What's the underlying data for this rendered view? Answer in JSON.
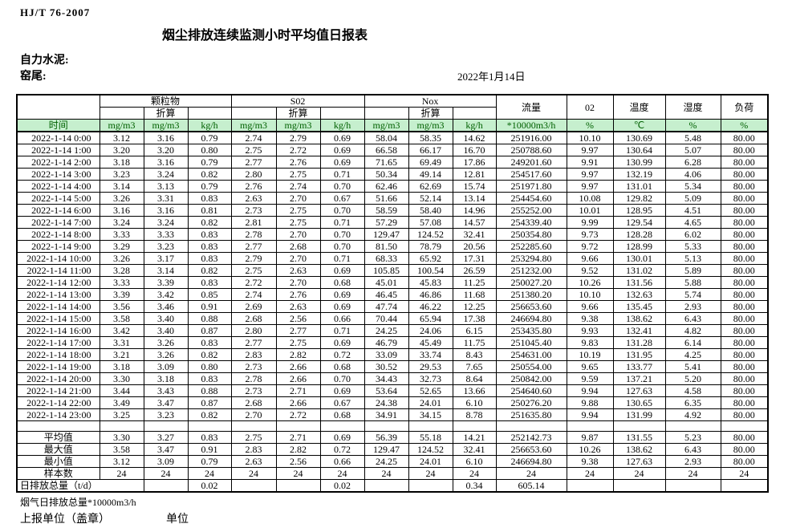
{
  "page": {
    "standard_code": "HJ/T  76-2007",
    "title": "烟尘排放连续监测小时平均值日报表",
    "company": "自力水泥:",
    "site": "窑尾:",
    "date": "2022年1月14日"
  },
  "colors": {
    "unit_row_background": "#c6efce",
    "unit_row_text": "#006100",
    "border": "#000000"
  },
  "table": {
    "time_header": "时间",
    "groups": [
      {
        "label": "颗粒物",
        "sub": "折算"
      },
      {
        "label": "S02",
        "sub": "折算"
      },
      {
        "label": "Nox",
        "sub": "折算"
      }
    ],
    "single_headers": [
      "流量",
      "02",
      "温度",
      "湿度",
      "负荷"
    ],
    "unit_row": [
      "mg/m3",
      "mg/m3",
      "kg/h",
      "mg/m3",
      "mg/m3",
      "kg/h",
      "mg/m3",
      "mg/m3",
      "kg/h",
      "*10000m3/h",
      "%",
      "℃",
      "%",
      "%"
    ],
    "rows": [
      {
        "time": "2022-1-14 0:00",
        "values": [
          "3.12",
          "3.16",
          "0.79",
          "2.74",
          "2.79",
          "0.69",
          "58.04",
          "58.35",
          "14.62",
          "251916.00",
          "10.10",
          "130.69",
          "5.48",
          "80.00"
        ]
      },
      {
        "time": "2022-1-14 1:00",
        "values": [
          "3.20",
          "3.20",
          "0.80",
          "2.75",
          "2.72",
          "0.69",
          "66.58",
          "66.17",
          "16.70",
          "250788.60",
          "9.97",
          "130.64",
          "5.07",
          "80.00"
        ]
      },
      {
        "time": "2022-1-14 2:00",
        "values": [
          "3.18",
          "3.16",
          "0.79",
          "2.77",
          "2.76",
          "0.69",
          "71.65",
          "69.49",
          "17.86",
          "249201.60",
          "9.91",
          "130.99",
          "6.28",
          "80.00"
        ]
      },
      {
        "time": "2022-1-14 3:00",
        "values": [
          "3.23",
          "3.24",
          "0.82",
          "2.80",
          "2.75",
          "0.71",
          "50.34",
          "49.14",
          "12.81",
          "254517.60",
          "9.97",
          "132.19",
          "4.06",
          "80.00"
        ]
      },
      {
        "time": "2022-1-14 4:00",
        "values": [
          "3.14",
          "3.13",
          "0.79",
          "2.76",
          "2.74",
          "0.70",
          "62.46",
          "62.69",
          "15.74",
          "251971.80",
          "9.97",
          "131.01",
          "5.34",
          "80.00"
        ]
      },
      {
        "time": "2022-1-14 5:00",
        "values": [
          "3.26",
          "3.31",
          "0.83",
          "2.63",
          "2.70",
          "0.67",
          "51.66",
          "52.14",
          "13.14",
          "254454.60",
          "10.08",
          "129.82",
          "5.09",
          "80.00"
        ]
      },
      {
        "time": "2022-1-14 6:00",
        "values": [
          "3.16",
          "3.16",
          "0.81",
          "2.73",
          "2.75",
          "0.70",
          "58.59",
          "58.40",
          "14.96",
          "255252.00",
          "10.01",
          "128.95",
          "4.51",
          "80.00"
        ]
      },
      {
        "time": "2022-1-14 7:00",
        "values": [
          "3.24",
          "3.24",
          "0.82",
          "2.81",
          "2.75",
          "0.71",
          "57.29",
          "57.08",
          "14.57",
          "254339.40",
          "9.99",
          "129.54",
          "4.65",
          "80.00"
        ]
      },
      {
        "time": "2022-1-14 8:00",
        "values": [
          "3.33",
          "3.33",
          "0.83",
          "2.78",
          "2.70",
          "0.70",
          "129.47",
          "124.52",
          "32.41",
          "250354.80",
          "9.73",
          "128.28",
          "6.02",
          "80.00"
        ]
      },
      {
        "time": "2022-1-14 9:00",
        "values": [
          "3.29",
          "3.23",
          "0.83",
          "2.77",
          "2.68",
          "0.70",
          "81.50",
          "78.79",
          "20.56",
          "252285.60",
          "9.72",
          "128.99",
          "5.33",
          "80.00"
        ]
      },
      {
        "time": "2022-1-14 10:00",
        "values": [
          "3.26",
          "3.17",
          "0.83",
          "2.79",
          "2.70",
          "0.71",
          "68.33",
          "65.92",
          "17.31",
          "253294.80",
          "9.66",
          "130.01",
          "5.13",
          "80.00"
        ]
      },
      {
        "time": "2022-1-14 11:00",
        "values": [
          "3.28",
          "3.14",
          "0.82",
          "2.75",
          "2.63",
          "0.69",
          "105.85",
          "100.54",
          "26.59",
          "251232.00",
          "9.52",
          "131.02",
          "5.89",
          "80.00"
        ]
      },
      {
        "time": "2022-1-14 12:00",
        "values": [
          "3.33",
          "3.39",
          "0.83",
          "2.72",
          "2.70",
          "0.68",
          "45.01",
          "45.83",
          "11.25",
          "250027.20",
          "10.26",
          "131.56",
          "5.88",
          "80.00"
        ]
      },
      {
        "time": "2022-1-14 13:00",
        "values": [
          "3.39",
          "3.42",
          "0.85",
          "2.74",
          "2.76",
          "0.69",
          "46.45",
          "46.86",
          "11.68",
          "251380.20",
          "10.10",
          "132.63",
          "5.74",
          "80.00"
        ]
      },
      {
        "time": "2022-1-14 14:00",
        "values": [
          "3.56",
          "3.46",
          "0.91",
          "2.69",
          "2.63",
          "0.69",
          "47.74",
          "46.22",
          "12.25",
          "256653.60",
          "9.66",
          "135.45",
          "2.93",
          "80.00"
        ]
      },
      {
        "time": "2022-1-14 15:00",
        "values": [
          "3.58",
          "3.40",
          "0.88",
          "2.68",
          "2.56",
          "0.66",
          "70.44",
          "65.94",
          "17.38",
          "246694.80",
          "9.38",
          "138.62",
          "6.43",
          "80.00"
        ]
      },
      {
        "time": "2022-1-14 16:00",
        "values": [
          "3.42",
          "3.40",
          "0.87",
          "2.80",
          "2.77",
          "0.71",
          "24.25",
          "24.06",
          "6.15",
          "253435.80",
          "9.93",
          "132.41",
          "4.82",
          "80.00"
        ]
      },
      {
        "time": "2022-1-14 17:00",
        "values": [
          "3.31",
          "3.26",
          "0.83",
          "2.77",
          "2.75",
          "0.69",
          "46.79",
          "45.49",
          "11.75",
          "251045.40",
          "9.83",
          "131.28",
          "6.14",
          "80.00"
        ]
      },
      {
        "time": "2022-1-14 18:00",
        "values": [
          "3.21",
          "3.26",
          "0.82",
          "2.83",
          "2.82",
          "0.72",
          "33.09",
          "33.74",
          "8.43",
          "254631.00",
          "10.19",
          "131.95",
          "4.25",
          "80.00"
        ]
      },
      {
        "time": "2022-1-14 19:00",
        "values": [
          "3.18",
          "3.09",
          "0.80",
          "2.73",
          "2.66",
          "0.68",
          "30.52",
          "29.53",
          "7.65",
          "250554.00",
          "9.65",
          "133.77",
          "5.41",
          "80.00"
        ]
      },
      {
        "time": "2022-1-14 20:00",
        "values": [
          "3.30",
          "3.18",
          "0.83",
          "2.78",
          "2.66",
          "0.70",
          "34.43",
          "32.73",
          "8.64",
          "250842.00",
          "9.59",
          "137.21",
          "5.20",
          "80.00"
        ]
      },
      {
        "time": "2022-1-14 21:00",
        "values": [
          "3.44",
          "3.43",
          "0.88",
          "2.73",
          "2.71",
          "0.69",
          "53.64",
          "52.65",
          "13.66",
          "254640.60",
          "9.94",
          "127.63",
          "4.58",
          "80.00"
        ]
      },
      {
        "time": "2022-1-14 22:00",
        "values": [
          "3.49",
          "3.47",
          "0.87",
          "2.68",
          "2.66",
          "0.67",
          "24.38",
          "24.01",
          "6.10",
          "250276.20",
          "9.88",
          "130.65",
          "6.35",
          "80.00"
        ]
      },
      {
        "time": "2022-1-14 23:00",
        "values": [
          "3.25",
          "3.23",
          "0.82",
          "2.70",
          "2.72",
          "0.68",
          "34.91",
          "34.15",
          "8.78",
          "251635.80",
          "9.94",
          "131.99",
          "4.92",
          "80.00"
        ]
      }
    ],
    "summary_rows": [
      {
        "label": "平均值",
        "values": [
          "3.30",
          "3.27",
          "0.83",
          "2.75",
          "2.71",
          "0.69",
          "56.39",
          "55.18",
          "14.21",
          "252142.73",
          "9.87",
          "131.55",
          "5.23",
          "80.00"
        ]
      },
      {
        "label": "最大值",
        "values": [
          "3.58",
          "3.47",
          "0.91",
          "2.83",
          "2.82",
          "0.72",
          "129.47",
          "124.52",
          "32.41",
          "256653.60",
          "10.26",
          "138.62",
          "6.43",
          "80.00"
        ]
      },
      {
        "label": "最小值",
        "values": [
          "3.12",
          "3.09",
          "0.79",
          "2.63",
          "2.56",
          "0.66",
          "24.25",
          "24.01",
          "6.10",
          "246694.80",
          "9.38",
          "127.63",
          "2.93",
          "80.00"
        ]
      },
      {
        "label": "样本数",
        "values": [
          "24",
          "24",
          "24",
          "24",
          "24",
          "24",
          "24",
          "24",
          "24",
          "24",
          "24",
          "24",
          "24",
          "24"
        ]
      }
    ],
    "total_row": {
      "label": "日排放总量（t/d）",
      "values": [
        "",
        "0.02",
        "",
        "",
        "0.02",
        "",
        "",
        "0.34",
        "605.14",
        "",
        "",
        "",
        ""
      ]
    }
  },
  "footer": {
    "flux_note": "烟气日排放总量*10000m3/h",
    "report_unit_label": "上报单位（盖章）",
    "unit_label": "单位"
  }
}
